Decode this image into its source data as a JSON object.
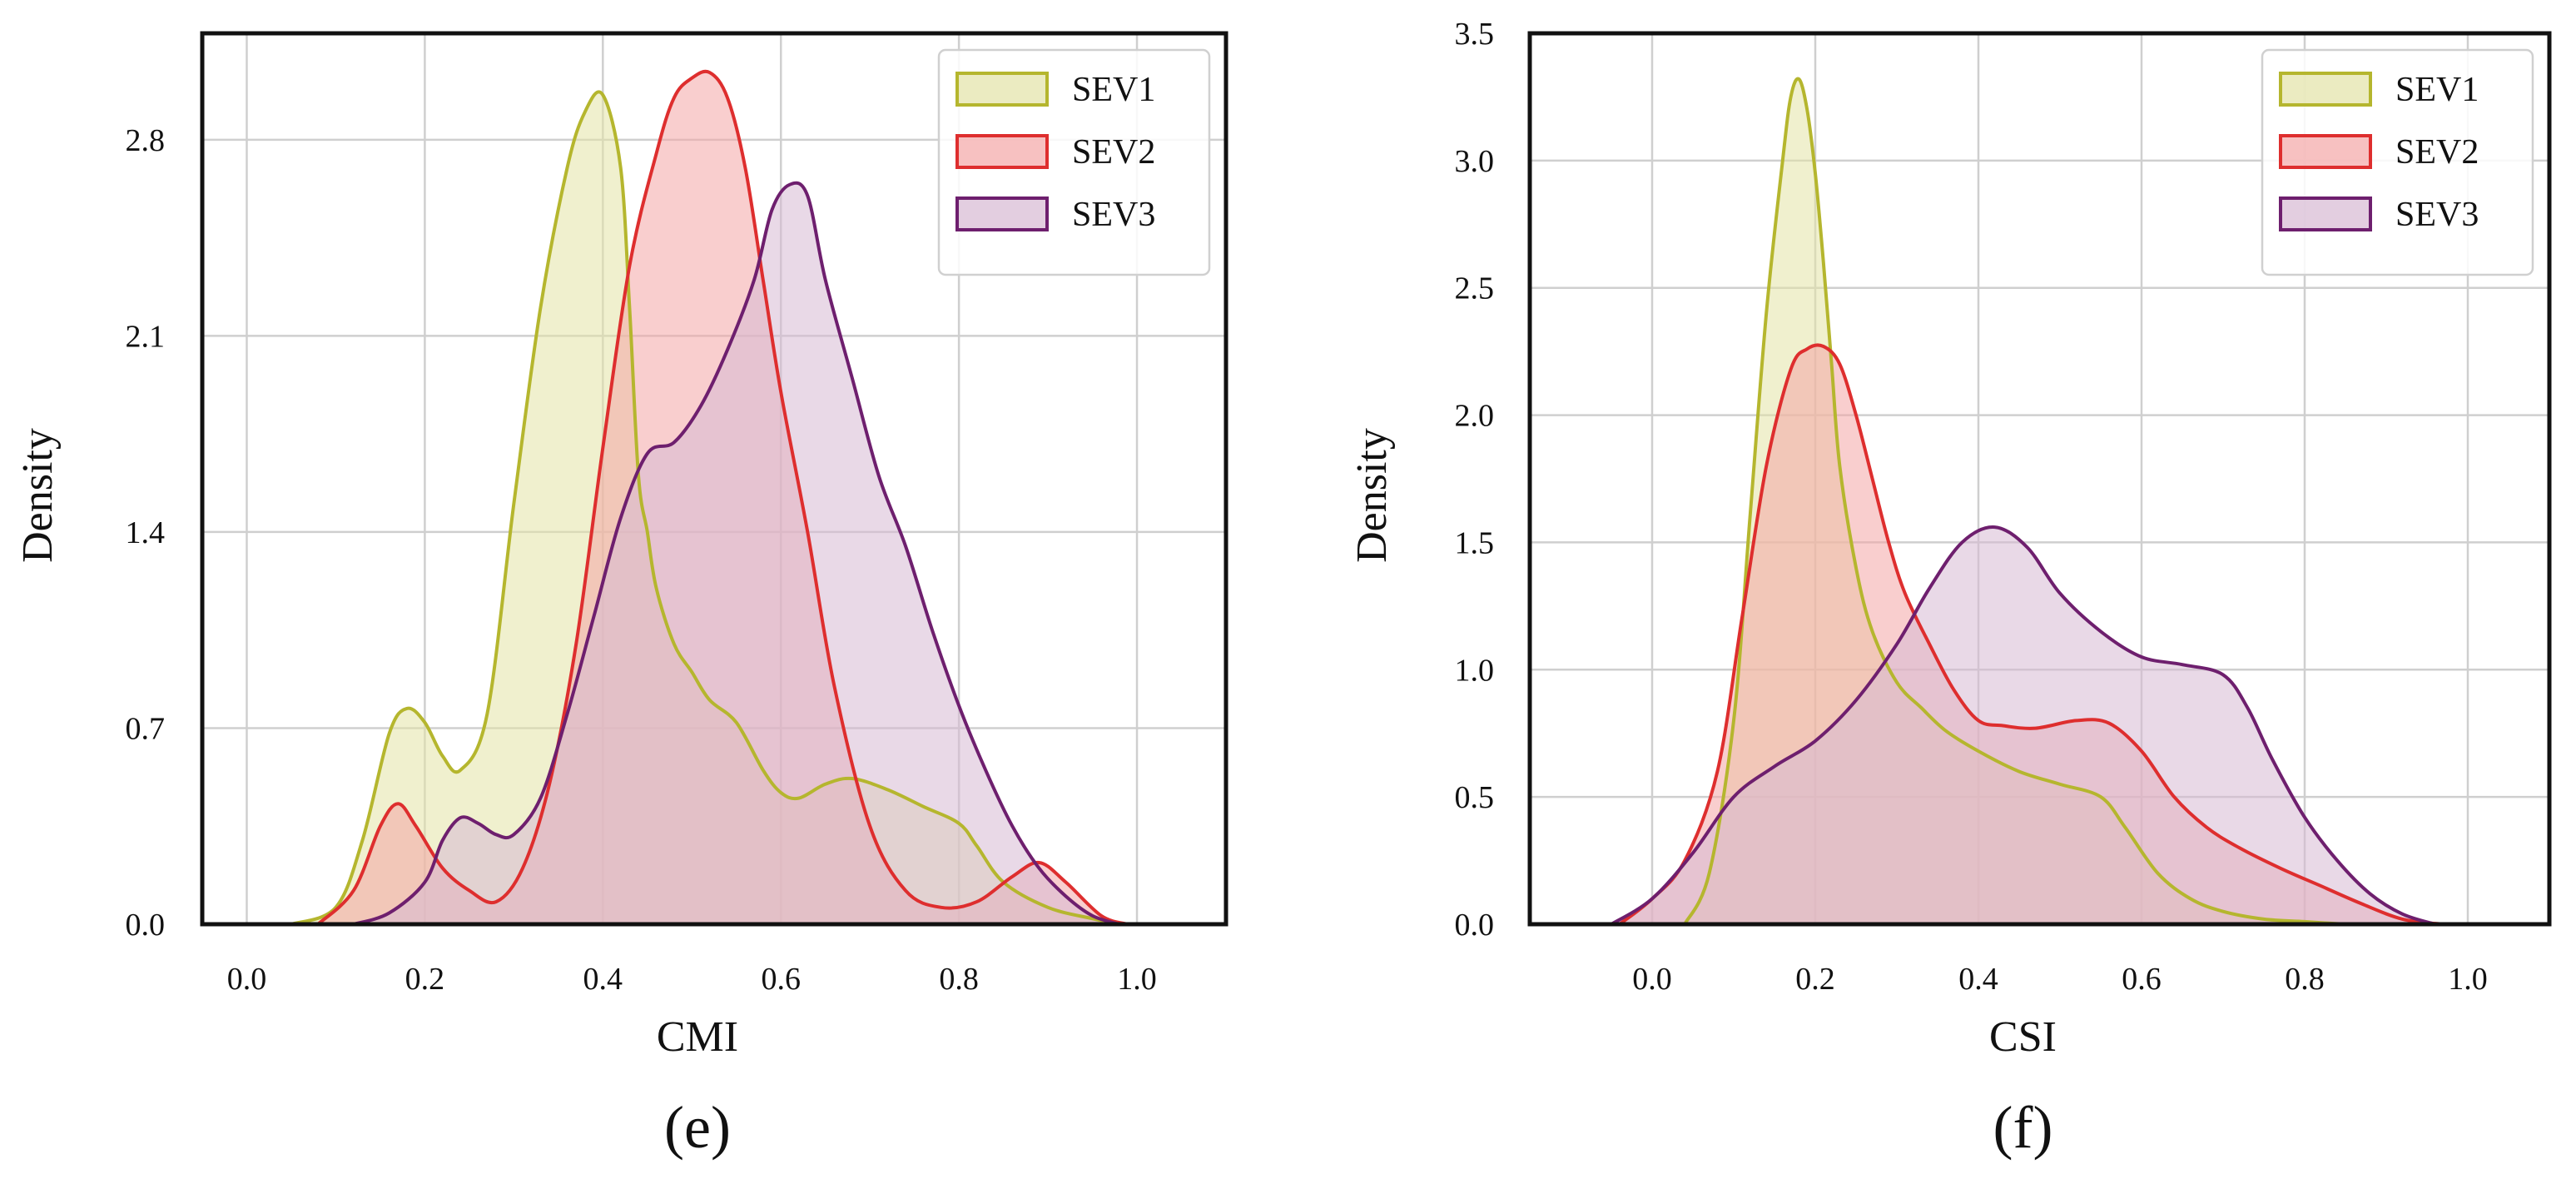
{
  "chart_data": [
    {
      "type": "area",
      "panel_label": "(e)",
      "xlabel": "CMI",
      "ylabel": "Density",
      "xlim": [
        -0.05,
        1.1
      ],
      "ylim": [
        0,
        3.18
      ],
      "xticks": [
        0.0,
        0.2,
        0.4,
        0.6,
        0.8,
        1.0
      ],
      "xtick_labels": [
        "0.0",
        "0.2",
        "0.4",
        "0.6",
        "0.8",
        "1.0"
      ],
      "yticks": [
        0.0,
        0.7,
        1.4,
        2.1,
        2.8
      ],
      "ytick_labels": [
        "0.0",
        "0.7",
        "1.4",
        "2.1",
        "2.8"
      ],
      "grid": true,
      "legend_position": "top-right",
      "series": [
        {
          "name": "SEV1",
          "line_color": "#b5b62e",
          "fill_color": "#e3e3a6",
          "x": [
            0.05,
            0.1,
            0.13,
            0.16,
            0.18,
            0.2,
            0.22,
            0.24,
            0.27,
            0.3,
            0.33,
            0.36,
            0.38,
            0.4,
            0.42,
            0.43,
            0.44,
            0.45,
            0.46,
            0.48,
            0.5,
            0.52,
            0.55,
            0.58,
            0.6,
            0.62,
            0.65,
            0.68,
            0.72,
            0.76,
            0.8,
            0.82,
            0.85,
            0.9,
            0.95,
            0.98
          ],
          "y": [
            0.0,
            0.06,
            0.3,
            0.68,
            0.77,
            0.72,
            0.6,
            0.55,
            0.75,
            1.5,
            2.2,
            2.7,
            2.9,
            2.96,
            2.7,
            2.2,
            1.6,
            1.4,
            1.2,
            1.0,
            0.9,
            0.8,
            0.72,
            0.55,
            0.47,
            0.45,
            0.5,
            0.52,
            0.48,
            0.42,
            0.36,
            0.28,
            0.15,
            0.06,
            0.02,
            0.0
          ]
        },
        {
          "name": "SEV2",
          "line_color": "#de2e2e",
          "fill_color": "#f4a6a6",
          "x": [
            0.08,
            0.12,
            0.15,
            0.17,
            0.19,
            0.22,
            0.25,
            0.28,
            0.31,
            0.34,
            0.37,
            0.4,
            0.43,
            0.46,
            0.48,
            0.5,
            0.52,
            0.54,
            0.56,
            0.58,
            0.6,
            0.63,
            0.66,
            0.7,
            0.74,
            0.78,
            0.82,
            0.86,
            0.89,
            0.92,
            0.96,
            0.99
          ],
          "y": [
            0.0,
            0.12,
            0.35,
            0.43,
            0.35,
            0.2,
            0.12,
            0.08,
            0.2,
            0.5,
            1.0,
            1.7,
            2.35,
            2.75,
            2.95,
            3.02,
            3.04,
            2.95,
            2.7,
            2.3,
            1.9,
            1.4,
            0.85,
            0.35,
            0.12,
            0.06,
            0.08,
            0.17,
            0.22,
            0.15,
            0.03,
            0.0
          ]
        },
        {
          "name": "SEV3",
          "line_color": "#6e1f6e",
          "fill_color": "#d7b9d3",
          "x": [
            0.12,
            0.16,
            0.2,
            0.22,
            0.24,
            0.26,
            0.28,
            0.3,
            0.33,
            0.36,
            0.39,
            0.42,
            0.45,
            0.48,
            0.51,
            0.54,
            0.57,
            0.59,
            0.61,
            0.63,
            0.65,
            0.68,
            0.71,
            0.74,
            0.77,
            0.8,
            0.83,
            0.86,
            0.89,
            0.92,
            0.95,
            0.98
          ],
          "y": [
            0.0,
            0.04,
            0.15,
            0.3,
            0.38,
            0.36,
            0.32,
            0.32,
            0.45,
            0.75,
            1.1,
            1.45,
            1.68,
            1.72,
            1.85,
            2.05,
            2.3,
            2.55,
            2.64,
            2.6,
            2.3,
            1.95,
            1.6,
            1.35,
            1.05,
            0.78,
            0.55,
            0.35,
            0.2,
            0.1,
            0.03,
            0.0
          ]
        }
      ]
    },
    {
      "type": "area",
      "panel_label": "(f)",
      "xlabel": "CSI",
      "ylabel": "Density",
      "xlim": [
        -0.15,
        1.1
      ],
      "ylim": [
        0,
        3.5
      ],
      "xticks": [
        0.0,
        0.2,
        0.4,
        0.6,
        0.8,
        1.0
      ],
      "xtick_labels": [
        "0.0",
        "0.2",
        "0.4",
        "0.6",
        "0.8",
        "1.0"
      ],
      "yticks": [
        0.0,
        0.5,
        1.0,
        1.5,
        2.0,
        2.5,
        3.0,
        3.5
      ],
      "ytick_labels": [
        "0.0",
        "0.5",
        "1.0",
        "1.5",
        "2.0",
        "2.5",
        "3.0",
        "3.5"
      ],
      "grid": true,
      "legend_position": "top-right",
      "series": [
        {
          "name": "SEV1",
          "line_color": "#b5b62e",
          "fill_color": "#e3e3a6",
          "x": [
            0.04,
            0.07,
            0.1,
            0.12,
            0.14,
            0.16,
            0.17,
            0.18,
            0.19,
            0.2,
            0.21,
            0.22,
            0.23,
            0.25,
            0.27,
            0.3,
            0.33,
            0.36,
            0.4,
            0.45,
            0.5,
            0.55,
            0.58,
            0.62,
            0.66,
            0.7,
            0.75,
            0.8,
            0.85
          ],
          "y": [
            0.0,
            0.2,
            0.8,
            1.6,
            2.4,
            3.0,
            3.25,
            3.32,
            3.2,
            2.95,
            2.6,
            2.2,
            1.8,
            1.4,
            1.15,
            0.95,
            0.85,
            0.76,
            0.68,
            0.6,
            0.55,
            0.5,
            0.38,
            0.2,
            0.1,
            0.05,
            0.02,
            0.01,
            0.0
          ]
        },
        {
          "name": "SEV2",
          "line_color": "#de2e2e",
          "fill_color": "#f4a6a6",
          "x": [
            -0.04,
            0.0,
            0.04,
            0.08,
            0.11,
            0.14,
            0.17,
            0.19,
            0.21,
            0.23,
            0.25,
            0.27,
            0.29,
            0.31,
            0.34,
            0.37,
            0.4,
            0.43,
            0.47,
            0.52,
            0.56,
            0.6,
            0.64,
            0.68,
            0.72,
            0.77,
            0.82,
            0.87,
            0.92,
            0.97
          ],
          "y": [
            0.0,
            0.1,
            0.25,
            0.6,
            1.2,
            1.8,
            2.18,
            2.26,
            2.27,
            2.2,
            2.0,
            1.75,
            1.5,
            1.3,
            1.1,
            0.92,
            0.8,
            0.78,
            0.77,
            0.8,
            0.79,
            0.68,
            0.5,
            0.38,
            0.3,
            0.22,
            0.15,
            0.08,
            0.02,
            0.0
          ]
        },
        {
          "name": "SEV3",
          "line_color": "#6e1f6e",
          "fill_color": "#d7b9d3",
          "x": [
            -0.05,
            0.0,
            0.05,
            0.1,
            0.15,
            0.2,
            0.25,
            0.3,
            0.34,
            0.38,
            0.42,
            0.46,
            0.5,
            0.55,
            0.6,
            0.65,
            0.7,
            0.73,
            0.76,
            0.8,
            0.84,
            0.88,
            0.92,
            0.96
          ],
          "y": [
            0.0,
            0.1,
            0.28,
            0.5,
            0.62,
            0.72,
            0.88,
            1.1,
            1.32,
            1.5,
            1.56,
            1.48,
            1.3,
            1.15,
            1.05,
            1.02,
            0.98,
            0.85,
            0.65,
            0.42,
            0.25,
            0.12,
            0.04,
            0.0
          ]
        }
      ]
    }
  ]
}
